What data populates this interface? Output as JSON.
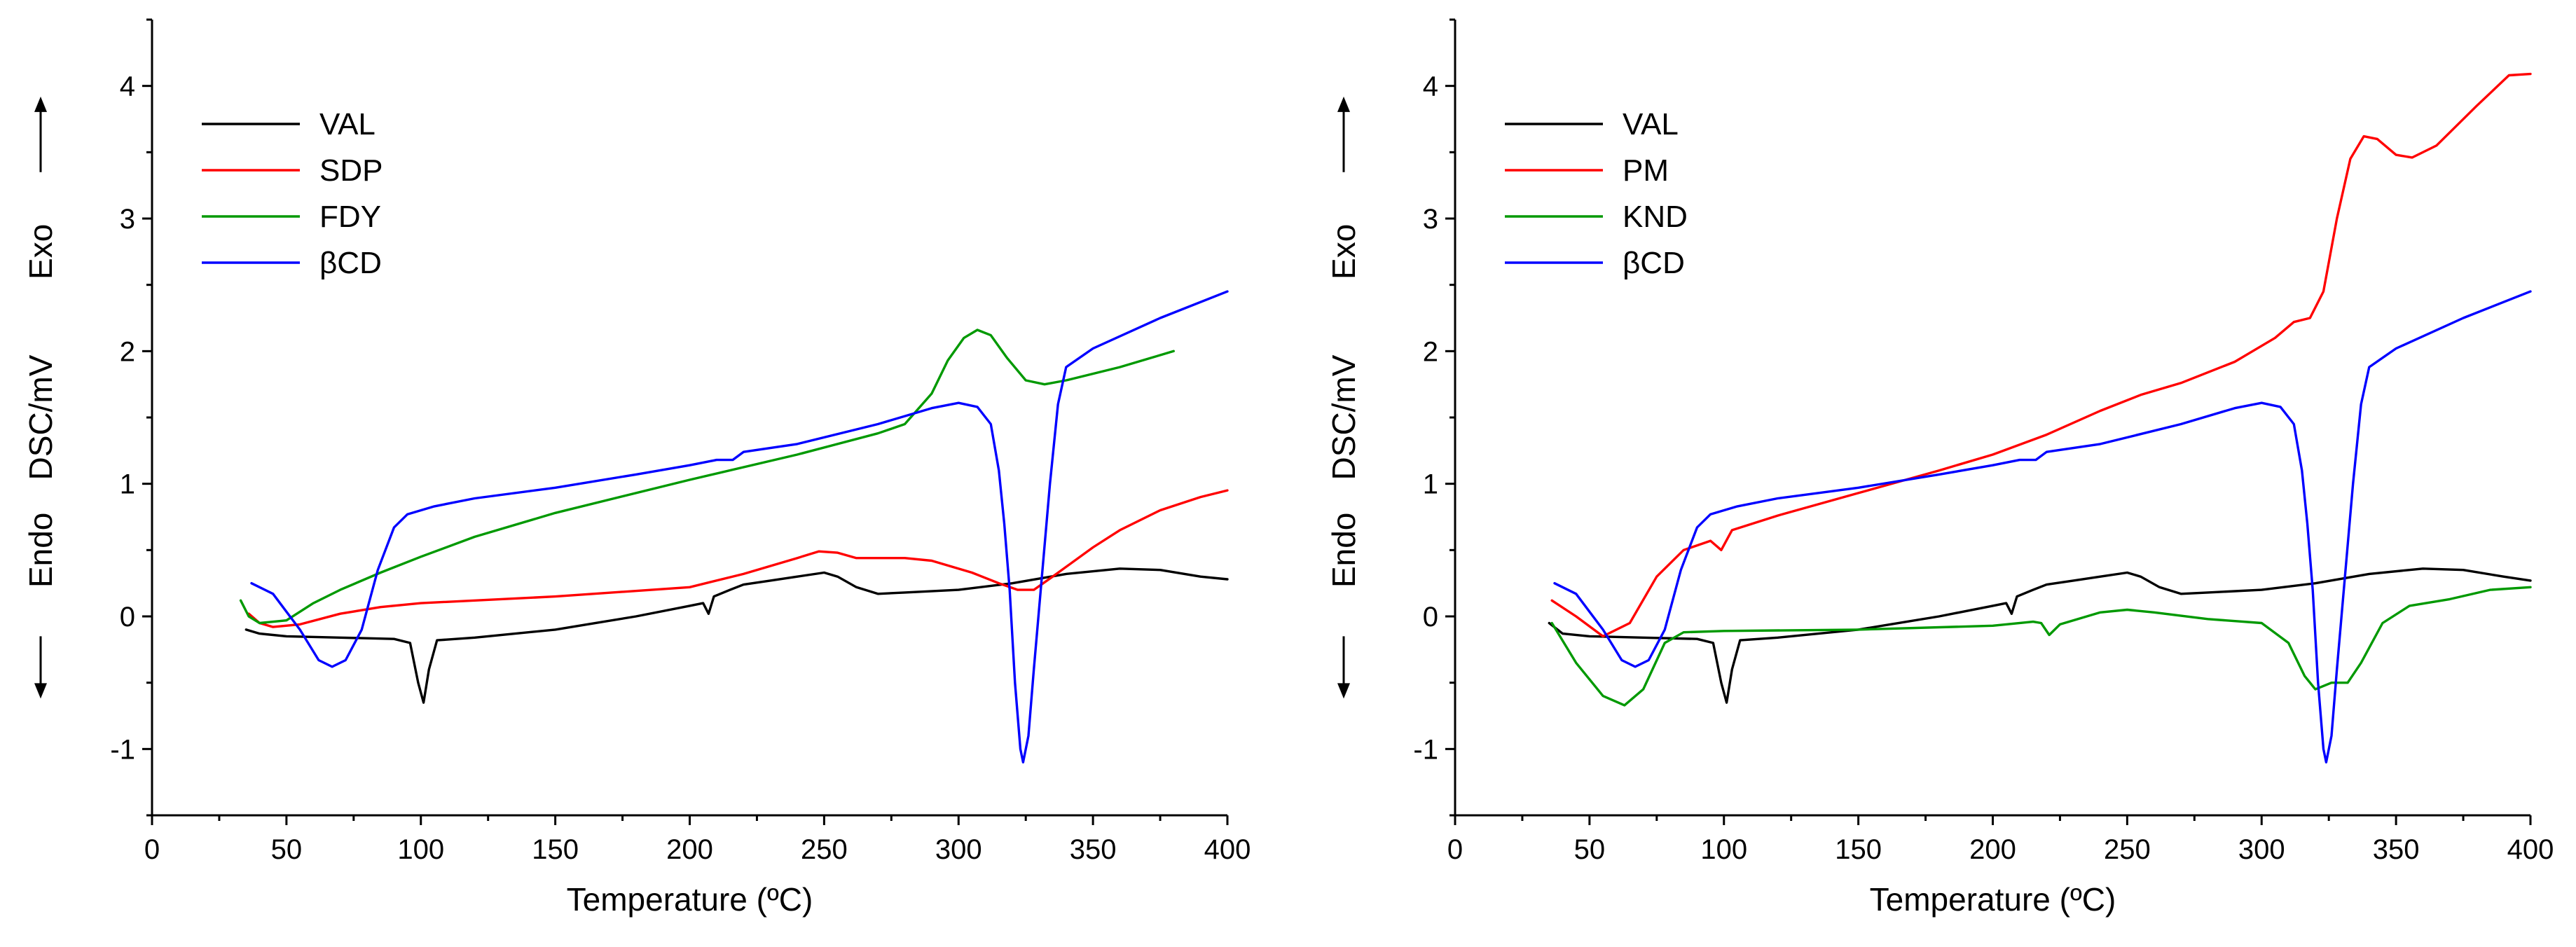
{
  "chart_data": [
    {
      "type": "line",
      "id": "left",
      "xlabel": "Temperature (ºC)",
      "ylabel": "DSC/mV",
      "endo_label": "Endo",
      "exo_label": "Exo",
      "xlim": [
        0,
        400
      ],
      "ylim": [
        -1.5,
        4.5
      ],
      "xticks": [
        "0",
        "50",
        "100",
        "150",
        "200",
        "250",
        "300",
        "350",
        "400"
      ],
      "yticks": [
        "-1",
        "0",
        "1",
        "2",
        "3",
        "4"
      ],
      "legend": "top-left",
      "series": [
        {
          "name": "VAL",
          "color": "#000000",
          "points": [
            [
              35,
              -0.1
            ],
            [
              40,
              -0.13
            ],
            [
              50,
              -0.15
            ],
            [
              70,
              -0.16
            ],
            [
              90,
              -0.17
            ],
            [
              96,
              -0.2
            ],
            [
              99,
              -0.5
            ],
            [
              101,
              -0.65
            ],
            [
              103,
              -0.4
            ],
            [
              106,
              -0.18
            ],
            [
              120,
              -0.16
            ],
            [
              150,
              -0.1
            ],
            [
              180,
              0.0
            ],
            [
              200,
              0.08
            ],
            [
              205,
              0.1
            ],
            [
              207,
              0.02
            ],
            [
              209,
              0.15
            ],
            [
              215,
              0.2
            ],
            [
              220,
              0.24
            ],
            [
              230,
              0.27
            ],
            [
              240,
              0.3
            ],
            [
              250,
              0.33
            ],
            [
              255,
              0.3
            ],
            [
              262,
              0.22
            ],
            [
              270,
              0.17
            ],
            [
              280,
              0.18
            ],
            [
              300,
              0.2
            ],
            [
              320,
              0.25
            ],
            [
              340,
              0.32
            ],
            [
              360,
              0.36
            ],
            [
              375,
              0.35
            ],
            [
              390,
              0.3
            ],
            [
              400,
              0.28
            ]
          ]
        },
        {
          "name": "SDP",
          "color": "#ff0000",
          "points": [
            [
              36,
              0.02
            ],
            [
              40,
              -0.05
            ],
            [
              45,
              -0.08
            ],
            [
              55,
              -0.06
            ],
            [
              70,
              0.02
            ],
            [
              85,
              0.07
            ],
            [
              100,
              0.1
            ],
            [
              150,
              0.15
            ],
            [
              200,
              0.22
            ],
            [
              220,
              0.32
            ],
            [
              240,
              0.44
            ],
            [
              248,
              0.49
            ],
            [
              255,
              0.48
            ],
            [
              262,
              0.44
            ],
            [
              280,
              0.44
            ],
            [
              290,
              0.42
            ],
            [
              305,
              0.33
            ],
            [
              315,
              0.25
            ],
            [
              322,
              0.2
            ],
            [
              328,
              0.2
            ],
            [
              335,
              0.3
            ],
            [
              350,
              0.52
            ],
            [
              360,
              0.65
            ],
            [
              375,
              0.8
            ],
            [
              390,
              0.9
            ],
            [
              400,
              0.95
            ]
          ]
        },
        {
          "name": "FDY",
          "color": "#009900",
          "points": [
            [
              33,
              0.12
            ],
            [
              36,
              0.0
            ],
            [
              40,
              -0.05
            ],
            [
              50,
              -0.03
            ],
            [
              60,
              0.1
            ],
            [
              70,
              0.2
            ],
            [
              85,
              0.33
            ],
            [
              100,
              0.45
            ],
            [
              120,
              0.6
            ],
            [
              150,
              0.78
            ],
            [
              200,
              1.03
            ],
            [
              240,
              1.22
            ],
            [
              270,
              1.38
            ],
            [
              280,
              1.45
            ],
            [
              290,
              1.68
            ],
            [
              296,
              1.93
            ],
            [
              302,
              2.1
            ],
            [
              307,
              2.16
            ],
            [
              312,
              2.12
            ],
            [
              318,
              1.95
            ],
            [
              325,
              1.78
            ],
            [
              332,
              1.75
            ],
            [
              340,
              1.78
            ],
            [
              360,
              1.88
            ],
            [
              380,
              2.0
            ]
          ]
        },
        {
          "name": "βCD",
          "color": "#0000ff",
          "points": [
            [
              37,
              0.25
            ],
            [
              45,
              0.17
            ],
            [
              55,
              -0.1
            ],
            [
              62,
              -0.33
            ],
            [
              67,
              -0.38
            ],
            [
              72,
              -0.33
            ],
            [
              78,
              -0.1
            ],
            [
              84,
              0.35
            ],
            [
              90,
              0.67
            ],
            [
              95,
              0.77
            ],
            [
              105,
              0.83
            ],
            [
              120,
              0.89
            ],
            [
              150,
              0.97
            ],
            [
              180,
              1.07
            ],
            [
              200,
              1.14
            ],
            [
              210,
              1.18
            ],
            [
              216,
              1.18
            ],
            [
              220,
              1.24
            ],
            [
              240,
              1.3
            ],
            [
              270,
              1.45
            ],
            [
              290,
              1.57
            ],
            [
              300,
              1.61
            ],
            [
              307,
              1.58
            ],
            [
              312,
              1.45
            ],
            [
              315,
              1.1
            ],
            [
              317,
              0.7
            ],
            [
              319,
              0.2
            ],
            [
              321,
              -0.5
            ],
            [
              323,
              -1.0
            ],
            [
              324,
              -1.1
            ],
            [
              326,
              -0.9
            ],
            [
              328,
              -0.4
            ],
            [
              331,
              0.3
            ],
            [
              334,
              1.0
            ],
            [
              337,
              1.6
            ],
            [
              340,
              1.88
            ],
            [
              350,
              2.02
            ],
            [
              375,
              2.25
            ],
            [
              400,
              2.45
            ]
          ]
        }
      ]
    },
    {
      "type": "line",
      "id": "right",
      "xlabel": "Temperature (ºC)",
      "ylabel": "DSC/mV",
      "endo_label": "Endo",
      "exo_label": "Exo",
      "xlim": [
        0,
        400
      ],
      "ylim": [
        -1.5,
        4.5
      ],
      "xticks": [
        "0",
        "50",
        "100",
        "150",
        "200",
        "250",
        "300",
        "350",
        "400"
      ],
      "yticks": [
        "-1",
        "0",
        "1",
        "2",
        "3",
        "4"
      ],
      "legend": "top-left",
      "series": [
        {
          "name": "VAL",
          "color": "#000000",
          "points": [
            [
              35,
              -0.05
            ],
            [
              40,
              -0.13
            ],
            [
              50,
              -0.15
            ],
            [
              70,
              -0.16
            ],
            [
              90,
              -0.17
            ],
            [
              96,
              -0.2
            ],
            [
              99,
              -0.5
            ],
            [
              101,
              -0.65
            ],
            [
              103,
              -0.4
            ],
            [
              106,
              -0.18
            ],
            [
              120,
              -0.16
            ],
            [
              150,
              -0.1
            ],
            [
              180,
              0.0
            ],
            [
              200,
              0.08
            ],
            [
              205,
              0.1
            ],
            [
              207,
              0.02
            ],
            [
              209,
              0.15
            ],
            [
              215,
              0.2
            ],
            [
              220,
              0.24
            ],
            [
              230,
              0.27
            ],
            [
              240,
              0.3
            ],
            [
              250,
              0.33
            ],
            [
              255,
              0.3
            ],
            [
              262,
              0.22
            ],
            [
              270,
              0.17
            ],
            [
              280,
              0.18
            ],
            [
              300,
              0.2
            ],
            [
              320,
              0.25
            ],
            [
              340,
              0.32
            ],
            [
              360,
              0.36
            ],
            [
              375,
              0.35
            ],
            [
              390,
              0.3
            ],
            [
              400,
              0.27
            ]
          ]
        },
        {
          "name": "PM",
          "color": "#ff0000",
          "points": [
            [
              36,
              0.12
            ],
            [
              45,
              0.0
            ],
            [
              55,
              -0.15
            ],
            [
              65,
              -0.05
            ],
            [
              75,
              0.3
            ],
            [
              85,
              0.5
            ],
            [
              95,
              0.57
            ],
            [
              99,
              0.5
            ],
            [
              103,
              0.65
            ],
            [
              120,
              0.76
            ],
            [
              150,
              0.93
            ],
            [
              180,
              1.1
            ],
            [
              200,
              1.22
            ],
            [
              220,
              1.37
            ],
            [
              240,
              1.55
            ],
            [
              255,
              1.67
            ],
            [
              270,
              1.76
            ],
            [
              290,
              1.92
            ],
            [
              305,
              2.1
            ],
            [
              312,
              2.22
            ],
            [
              318,
              2.25
            ],
            [
              323,
              2.45
            ],
            [
              328,
              3.0
            ],
            [
              333,
              3.45
            ],
            [
              338,
              3.62
            ],
            [
              343,
              3.6
            ],
            [
              350,
              3.48
            ],
            [
              356,
              3.46
            ],
            [
              365,
              3.55
            ],
            [
              380,
              3.85
            ],
            [
              392,
              4.08
            ],
            [
              400,
              4.09
            ]
          ]
        },
        {
          "name": "KND",
          "color": "#009900",
          "points": [
            [
              36,
              -0.05
            ],
            [
              45,
              -0.35
            ],
            [
              55,
              -0.6
            ],
            [
              63,
              -0.67
            ],
            [
              70,
              -0.55
            ],
            [
              78,
              -0.2
            ],
            [
              85,
              -0.12
            ],
            [
              100,
              -0.11
            ],
            [
              150,
              -0.1
            ],
            [
              200,
              -0.07
            ],
            [
              215,
              -0.04
            ],
            [
              218,
              -0.05
            ],
            [
              221,
              -0.14
            ],
            [
              225,
              -0.06
            ],
            [
              240,
              0.03
            ],
            [
              250,
              0.05
            ],
            [
              260,
              0.03
            ],
            [
              280,
              -0.02
            ],
            [
              300,
              -0.05
            ],
            [
              310,
              -0.2
            ],
            [
              316,
              -0.45
            ],
            [
              320,
              -0.55
            ],
            [
              326,
              -0.5
            ],
            [
              332,
              -0.5
            ],
            [
              337,
              -0.35
            ],
            [
              345,
              -0.05
            ],
            [
              355,
              0.08
            ],
            [
              370,
              0.13
            ],
            [
              385,
              0.2
            ],
            [
              400,
              0.22
            ]
          ]
        },
        {
          "name": "βCD",
          "color": "#0000ff",
          "points": [
            [
              37,
              0.25
            ],
            [
              45,
              0.17
            ],
            [
              55,
              -0.1
            ],
            [
              62,
              -0.33
            ],
            [
              67,
              -0.38
            ],
            [
              72,
              -0.33
            ],
            [
              78,
              -0.1
            ],
            [
              84,
              0.35
            ],
            [
              90,
              0.67
            ],
            [
              95,
              0.77
            ],
            [
              105,
              0.83
            ],
            [
              120,
              0.89
            ],
            [
              150,
              0.97
            ],
            [
              180,
              1.07
            ],
            [
              200,
              1.14
            ],
            [
              210,
              1.18
            ],
            [
              216,
              1.18
            ],
            [
              220,
              1.24
            ],
            [
              240,
              1.3
            ],
            [
              270,
              1.45
            ],
            [
              290,
              1.57
            ],
            [
              300,
              1.61
            ],
            [
              307,
              1.58
            ],
            [
              312,
              1.45
            ],
            [
              315,
              1.1
            ],
            [
              317,
              0.7
            ],
            [
              319,
              0.2
            ],
            [
              321,
              -0.5
            ],
            [
              323,
              -1.0
            ],
            [
              324,
              -1.1
            ],
            [
              326,
              -0.9
            ],
            [
              328,
              -0.4
            ],
            [
              331,
              0.3
            ],
            [
              334,
              1.0
            ],
            [
              337,
              1.6
            ],
            [
              340,
              1.88
            ],
            [
              350,
              2.02
            ],
            [
              375,
              2.25
            ],
            [
              400,
              2.45
            ]
          ]
        }
      ]
    }
  ]
}
